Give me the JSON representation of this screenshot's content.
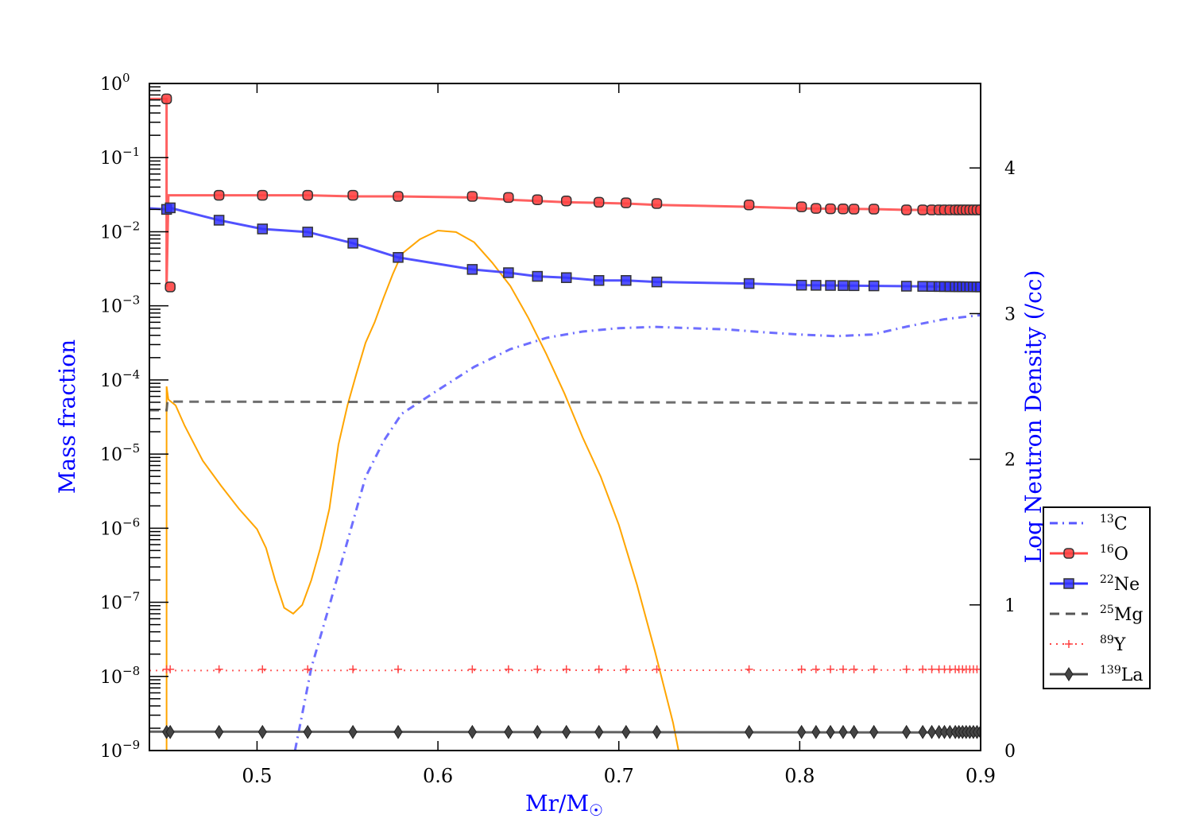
{
  "chart_data": {
    "type": "line",
    "xlabel": "Mr/M",
    "xlabel_symbol": "☉",
    "ylabel_left": "Mass fraction",
    "ylabel_right": "Log Neutron Density (/cc)",
    "xlim": [
      0.4405,
      0.9
    ],
    "ylim_left": [
      1e-09,
      1
    ],
    "ylim_right": [
      0,
      4.58
    ],
    "yscale_left": "log",
    "x_ticks": [
      "0.5",
      "0.6",
      "0.7",
      "0.8",
      "0.9"
    ],
    "y_left_ticks": [
      {
        "base": "10",
        "exp": "0"
      },
      {
        "base": "10",
        "exp": "−1"
      },
      {
        "base": "10",
        "exp": "−2"
      },
      {
        "base": "10",
        "exp": "−3"
      },
      {
        "base": "10",
        "exp": "−4"
      },
      {
        "base": "10",
        "exp": "−5"
      },
      {
        "base": "10",
        "exp": "−6"
      },
      {
        "base": "10",
        "exp": "−7"
      },
      {
        "base": "10",
        "exp": "−8"
      },
      {
        "base": "10",
        "exp": "−9"
      }
    ],
    "y_right_ticks": [
      "0",
      "1",
      "2",
      "3",
      "4"
    ],
    "legend_position": "right-outside",
    "marker_x": [
      0.45,
      0.452,
      0.479,
      0.503,
      0.528,
      0.553,
      0.578,
      0.619,
      0.639,
      0.655,
      0.671,
      0.689,
      0.704,
      0.721,
      0.772,
      0.801,
      0.809,
      0.817,
      0.824,
      0.83,
      0.841,
      0.859,
      0.868,
      0.873,
      0.877,
      0.88,
      0.883,
      0.886,
      0.888,
      0.89,
      0.892,
      0.894,
      0.896,
      0.898,
      0.9
    ],
    "series": [
      {
        "name": "13C",
        "mass": "13",
        "el": "C",
        "color": "#5555ff",
        "style": "dashdot",
        "marker": "none",
        "x": [
          0.521,
          0.53,
          0.54,
          0.55,
          0.56,
          0.57,
          0.58,
          0.6,
          0.62,
          0.64,
          0.66,
          0.68,
          0.7,
          0.72,
          0.74,
          0.76,
          0.78,
          0.8,
          0.82,
          0.84,
          0.86,
          0.88,
          0.9
        ],
        "y": [
          1e-09,
          1.3e-08,
          9e-08,
          6.7e-07,
          4.9e-06,
          1.5e-05,
          3.5e-05,
          7.3e-05,
          0.00015,
          0.00026,
          0.00037,
          0.00045,
          0.0005,
          0.00052,
          0.0005,
          0.00048,
          0.00044,
          0.00041,
          0.00039,
          0.00041,
          0.00053,
          0.00066,
          0.00075
        ]
      },
      {
        "name": "16O",
        "mass": "16",
        "el": "O",
        "color": "#ff4444",
        "style": "solid",
        "marker": "circle",
        "x": [
          0.4405,
          0.45,
          0.45,
          0.451,
          0.452,
          0.479,
          0.503,
          0.528,
          0.553,
          0.578,
          0.619,
          0.639,
          0.655,
          0.671,
          0.689,
          0.704,
          0.721,
          0.772,
          0.801,
          0.841,
          0.859,
          0.9
        ],
        "y": [
          0.62,
          0.62,
          0.0018,
          0.031,
          0.031,
          0.031,
          0.031,
          0.031,
          0.03,
          0.03,
          0.029,
          0.027,
          0.026,
          0.025,
          0.0245,
          0.024,
          0.023,
          0.0217,
          0.0206,
          0.0202,
          0.0197,
          0.0197
        ],
        "marker_y": [
          0.62,
          0.0018,
          0.031,
          0.031,
          0.031,
          0.031,
          0.03,
          0.03,
          0.029,
          0.027,
          0.026,
          0.025,
          0.0245,
          0.024,
          0.023,
          0.0217,
          0.0206,
          0.0204,
          0.0203,
          0.0202,
          0.0202,
          0.0197,
          0.0197,
          0.0197,
          0.0197,
          0.0197,
          0.0197,
          0.0197,
          0.0197,
          0.0197,
          0.0197,
          0.0197,
          0.0197,
          0.0197,
          0.0197
        ]
      },
      {
        "name": "22Ne",
        "mass": "22",
        "el": "Ne",
        "color": "#3333ff",
        "style": "solid",
        "marker": "square",
        "x": [
          0.4405,
          0.45,
          0.452,
          0.479,
          0.503,
          0.528,
          0.553,
          0.578,
          0.619,
          0.639,
          0.655,
          0.671,
          0.689,
          0.704,
          0.721,
          0.772,
          0.801,
          0.9
        ],
        "y": [
          0.0207,
          0.02,
          0.021,
          0.0143,
          0.0109,
          0.0099,
          0.007,
          0.0045,
          0.0031,
          0.0028,
          0.0025,
          0.0024,
          0.0022,
          0.0022,
          0.0021,
          0.002,
          0.0019,
          0.0018
        ]
      },
      {
        "name": "25Mg",
        "mass": "25",
        "el": "Mg",
        "color": "#555555",
        "style": "dashed",
        "marker": "none",
        "x": [
          0.4405,
          0.45,
          0.4505,
          0.9
        ],
        "y": [
          3.9e-05,
          3.9e-05,
          5.1e-05,
          4.9e-05
        ]
      },
      {
        "name": "89Y",
        "mass": "89",
        "el": "Y",
        "color": "#ff4444",
        "style": "dotted",
        "marker": "plus",
        "x": [
          0.4405,
          0.9
        ],
        "y": [
          1.2e-08,
          1.22e-08
        ],
        "marker_const": 1.25e-08
      },
      {
        "name": "139La",
        "mass": "139",
        "el": "La",
        "color": "#444444",
        "style": "solid",
        "marker": "diamond",
        "x": [
          0.4405,
          0.9
        ],
        "y": [
          1.8e-09,
          1.75e-09
        ],
        "marker_const": 1.78e-09
      }
    ],
    "neutron_density": {
      "name": "Log Neutron Density",
      "color": "#ffa500",
      "axis": "right",
      "x": [
        0.45,
        0.45,
        0.451,
        0.455,
        0.46,
        0.47,
        0.48,
        0.49,
        0.5,
        0.505,
        0.51,
        0.515,
        0.52,
        0.525,
        0.53,
        0.535,
        0.54,
        0.545,
        0.55,
        0.555,
        0.56,
        0.565,
        0.57,
        0.575,
        0.58,
        0.585,
        0.59,
        0.6,
        0.61,
        0.62,
        0.63,
        0.64,
        0.65,
        0.66,
        0.67,
        0.68,
        0.69,
        0.7,
        0.71,
        0.72,
        0.73,
        0.733
      ],
      "y": [
        0,
        2.5,
        2.41,
        2.37,
        2.23,
        1.99,
        1.82,
        1.66,
        1.52,
        1.39,
        1.17,
        0.98,
        0.94,
        1.0,
        1.17,
        1.39,
        1.66,
        2.1,
        2.37,
        2.59,
        2.8,
        2.94,
        3.11,
        3.27,
        3.41,
        3.46,
        3.51,
        3.57,
        3.56,
        3.49,
        3.35,
        3.19,
        2.97,
        2.72,
        2.45,
        2.15,
        1.88,
        1.55,
        1.14,
        0.68,
        0.19,
        0
      ]
    }
  }
}
